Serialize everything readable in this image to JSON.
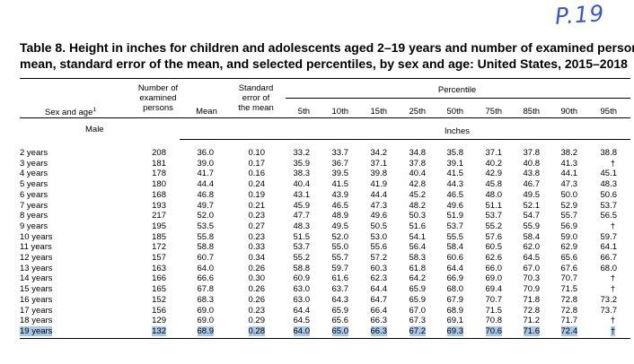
{
  "annotation": "P.19",
  "table": {
    "title_line1": "Table 8. Height in inches for children and adolescents aged 2–19 years and number of examined persons,",
    "title_line2": "mean, standard error of the mean, and selected percentiles, by sex and age: United States, 2015–2018",
    "stub_header": "Sex and age",
    "stub_header_sup": "1",
    "columns": {
      "number_l1": "Number of",
      "number_l2": "examined",
      "number_l3": "persons",
      "mean": "Mean",
      "se_l1": "Standard",
      "se_l2": "error of",
      "se_l3": "the mean",
      "percentile": "Percentile",
      "p5": "5th",
      "p10": "10th",
      "p15": "15th",
      "p25": "25th",
      "p50": "50th",
      "p75": "75th",
      "p85": "85th",
      "p90": "90th",
      "p95": "95th"
    },
    "section_label": "Male",
    "unit_label": "Inches",
    "rows": [
      {
        "age": "2 years",
        "n": "208",
        "mean": "36.0",
        "se": "0.10",
        "p": [
          "33.2",
          "33.7",
          "34.2",
          "34.8",
          "35.8",
          "37.1",
          "37.8",
          "38.2",
          "38.8"
        ]
      },
      {
        "age": "3 years",
        "n": "181",
        "mean": "39.0",
        "se": "0.17",
        "p": [
          "35.9",
          "36.7",
          "37.1",
          "37.8",
          "39.1",
          "40.2",
          "40.8",
          "41.3",
          "†"
        ]
      },
      {
        "age": "4 years",
        "n": "178",
        "mean": "41.7",
        "se": "0.16",
        "p": [
          "38.3",
          "39.5",
          "39.8",
          "40.4",
          "41.5",
          "42.9",
          "43.8",
          "44.1",
          "45.1"
        ]
      },
      {
        "age": "5 years",
        "n": "180",
        "mean": "44.4",
        "se": "0.24",
        "p": [
          "40.4",
          "41.5",
          "41.9",
          "42.8",
          "44.3",
          "45.8",
          "46.7",
          "47.3",
          "48.3"
        ]
      },
      {
        "age": "6 years",
        "n": "168",
        "mean": "46.8",
        "se": "0.19",
        "p": [
          "43.1",
          "43.9",
          "44.4",
          "45.2",
          "46.5",
          "48.0",
          "49.5",
          "50.0",
          "50.6"
        ]
      },
      {
        "age": "7 years",
        "n": "193",
        "mean": "49.7",
        "se": "0.21",
        "p": [
          "45.9",
          "46.5",
          "47.3",
          "48.2",
          "49.6",
          "51.1",
          "52.1",
          "52.9",
          "53.7"
        ]
      },
      {
        "age": "8 years",
        "n": "217",
        "mean": "52.0",
        "se": "0.23",
        "p": [
          "47.7",
          "48.9",
          "49.6",
          "50.3",
          "51.9",
          "53.7",
          "54.7",
          "55.7",
          "56.5"
        ]
      },
      {
        "age": "9 years",
        "n": "195",
        "mean": "53.5",
        "se": "0.27",
        "p": [
          "48.3",
          "49.5",
          "50.5",
          "51.6",
          "53.7",
          "55.2",
          "55.9",
          "56.9",
          "†"
        ]
      },
      {
        "age": "10 years",
        "n": "185",
        "mean": "55.8",
        "se": "0.23",
        "p": [
          "51.5",
          "52.0",
          "53.0",
          "54.1",
          "55.5",
          "57.6",
          "58.4",
          "59.0",
          "59.7"
        ]
      },
      {
        "age": "11 years",
        "n": "172",
        "mean": "58.8",
        "se": "0.33",
        "p": [
          "53.7",
          "55.0",
          "55.6",
          "56.4",
          "58.4",
          "60.5",
          "62.0",
          "62.9",
          "64.1"
        ]
      },
      {
        "age": "12 years",
        "n": "157",
        "mean": "60.7",
        "se": "0.34",
        "p": [
          "55.2",
          "55.7",
          "57.2",
          "58.3",
          "60.6",
          "62.6",
          "64.5",
          "65.6",
          "66.7"
        ]
      },
      {
        "age": "13 years",
        "n": "163",
        "mean": "64.0",
        "se": "0.26",
        "p": [
          "58.8",
          "59.7",
          "60.3",
          "61.8",
          "64.4",
          "66.0",
          "67.0",
          "67.6",
          "68.0"
        ]
      },
      {
        "age": "14 years",
        "n": "166",
        "mean": "66.6",
        "se": "0.30",
        "p": [
          "60.9",
          "61.6",
          "62.3",
          "64.2",
          "66.9",
          "69.0",
          "70.3",
          "70.7",
          "†"
        ]
      },
      {
        "age": "15 years",
        "n": "165",
        "mean": "67.8",
        "se": "0.26",
        "p": [
          "63.0",
          "63.7",
          "64.4",
          "65.9",
          "68.0",
          "69.4",
          "70.9",
          "71.5",
          "†"
        ]
      },
      {
        "age": "16 years",
        "n": "152",
        "mean": "68.3",
        "se": "0.26",
        "p": [
          "63.0",
          "64.3",
          "64.7",
          "65.9",
          "67.9",
          "70.7",
          "71.8",
          "72.8",
          "73.2"
        ]
      },
      {
        "age": "17 years",
        "n": "156",
        "mean": "69.0",
        "se": "0.23",
        "p": [
          "64.4",
          "65.9",
          "66.4",
          "67.0",
          "68.9",
          "71.5",
          "72.8",
          "72.8",
          "73.7"
        ]
      },
      {
        "age": "18 years",
        "n": "129",
        "mean": "69.0",
        "se": "0.29",
        "p": [
          "64.5",
          "65.6",
          "66.3",
          "67.3",
          "69.1",
          "70.8",
          "71.2",
          "71.7",
          "†"
        ]
      },
      {
        "age": "19 years",
        "n": "132",
        "mean": "68.9",
        "se": "0.28",
        "p": [
          "64.0",
          "65.0",
          "66.3",
          "67.2",
          "69.3",
          "70.6",
          "71.6",
          "72.4",
          "†"
        ]
      }
    ]
  },
  "highlight_color": "#a9c8e8"
}
